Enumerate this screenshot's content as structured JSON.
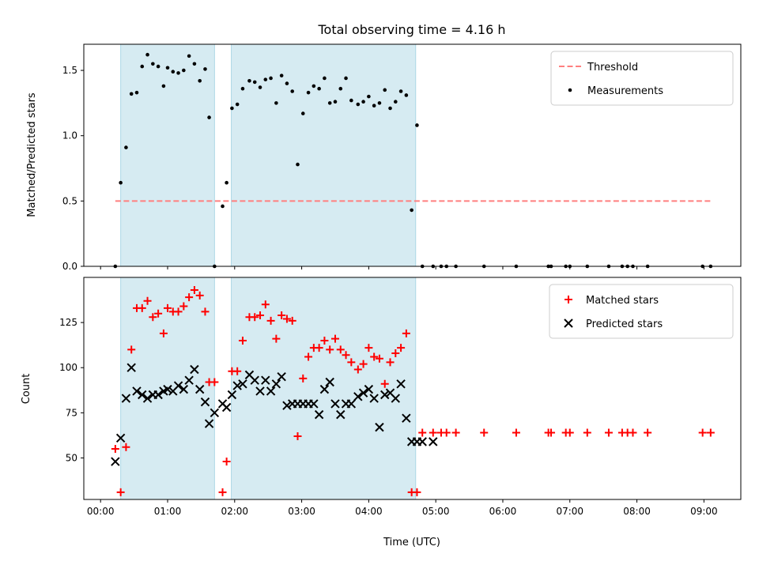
{
  "chart_data": {
    "title": "Total observing time = 4.16 h",
    "xlabel": "Time (UTC)",
    "x_ticks": [
      "00:00",
      "01:00",
      "02:00",
      "03:00",
      "04:00",
      "05:00",
      "06:00",
      "07:00",
      "08:00",
      "09:00"
    ],
    "x_tick_hours": [
      0,
      1,
      2,
      3,
      4,
      5,
      6,
      7,
      8,
      9
    ],
    "xlim_hours": [
      -0.25,
      9.55
    ],
    "observing_windows_hours": [
      [
        0.3,
        1.7
      ],
      [
        1.95,
        4.7
      ]
    ],
    "colors": {
      "window": "#add8e6",
      "threshold": "#ff7f7f",
      "measurements": "#000000",
      "matched": "#ff0000",
      "predicted": "#000000"
    },
    "panels": [
      {
        "type": "scatter",
        "ylabel": "Matched/Predicted stars",
        "ylim": [
          0,
          1.7
        ],
        "y_ticks": [
          0.0,
          0.5,
          1.0,
          1.5
        ],
        "y_tick_labels": [
          "0.0",
          "0.5",
          "1.0",
          "1.5"
        ],
        "legend_position": "top-right",
        "threshold": {
          "name": "Threshold",
          "value": 0.5,
          "x_range_hours": [
            0.22,
            9.1
          ]
        },
        "series": [
          {
            "name": "Measurements",
            "x_hours": [
              0.22,
              0.3,
              0.38,
              0.46,
              0.54,
              0.62,
              0.7,
              0.78,
              0.86,
              0.94,
              1.0,
              1.08,
              1.16,
              1.24,
              1.32,
              1.4,
              1.48,
              1.56,
              1.62,
              1.7,
              1.82,
              1.88,
              1.96,
              2.04,
              2.12,
              2.22,
              2.3,
              2.38,
              2.46,
              2.54,
              2.62,
              2.7,
              2.78,
              2.86,
              2.94,
              3.02,
              3.1,
              3.18,
              3.26,
              3.34,
              3.42,
              3.5,
              3.58,
              3.66,
              3.74,
              3.84,
              3.92,
              4.0,
              4.08,
              4.16,
              4.24,
              4.32,
              4.4,
              4.48,
              4.56,
              4.64,
              4.72,
              4.8,
              4.96,
              5.08,
              5.16,
              5.3,
              5.72,
              6.2,
              6.68,
              6.72,
              6.94,
              7.0,
              7.26,
              7.58,
              7.78,
              7.86,
              7.94,
              8.16,
              8.98,
              9.1
            ],
            "y": [
              0,
              0.64,
              0.91,
              1.32,
              1.33,
              1.53,
              1.62,
              1.55,
              1.53,
              1.38,
              1.52,
              1.49,
              1.48,
              1.5,
              1.61,
              1.55,
              1.42,
              1.51,
              1.14,
              0,
              0.46,
              0.64,
              1.21,
              1.24,
              1.36,
              1.42,
              1.41,
              1.37,
              1.43,
              1.44,
              1.25,
              1.46,
              1.4,
              1.34,
              0.78,
              1.17,
              1.33,
              1.38,
              1.36,
              1.44,
              1.25,
              1.26,
              1.36,
              1.44,
              1.27,
              1.24,
              1.26,
              1.3,
              1.23,
              1.25,
              1.35,
              1.21,
              1.26,
              1.34,
              1.31,
              0.43,
              1.08,
              0,
              0,
              0,
              0,
              0,
              0,
              0,
              0,
              0,
              0,
              0,
              0,
              0,
              0,
              0,
              0,
              0,
              0,
              0
            ]
          }
        ]
      },
      {
        "type": "scatter",
        "ylabel": "Count",
        "ylim": [
          27,
          150
        ],
        "y_ticks": [
          50,
          75,
          100,
          125
        ],
        "y_tick_labels": [
          "50",
          "75",
          "100",
          "125"
        ],
        "legend_position": "top-right",
        "series": [
          {
            "name": "Matched stars",
            "marker": "plus",
            "x_hours": [
              0.22,
              0.3,
              0.38,
              0.46,
              0.54,
              0.62,
              0.7,
              0.78,
              0.86,
              0.94,
              1.0,
              1.08,
              1.16,
              1.24,
              1.32,
              1.4,
              1.48,
              1.56,
              1.62,
              1.7,
              1.82,
              1.88,
              1.96,
              2.04,
              2.12,
              2.22,
              2.3,
              2.38,
              2.46,
              2.54,
              2.62,
              2.7,
              2.78,
              2.86,
              2.94,
              3.02,
              3.1,
              3.18,
              3.26,
              3.34,
              3.42,
              3.5,
              3.58,
              3.66,
              3.74,
              3.84,
              3.92,
              4.0,
              4.08,
              4.16,
              4.24,
              4.32,
              4.4,
              4.48,
              4.56,
              4.64,
              4.72,
              4.8,
              4.96,
              5.08,
              5.16,
              5.3,
              5.72,
              6.2,
              6.68,
              6.72,
              6.94,
              7.0,
              7.26,
              7.58,
              7.78,
              7.86,
              7.94,
              8.16,
              8.98,
              9.1
            ],
            "y": [
              55,
              31,
              56,
              110,
              133,
              133,
              137,
              128,
              130,
              119,
              133,
              131,
              131,
              134,
              139,
              143,
              140,
              131,
              92,
              92,
              31,
              48,
              98,
              98,
              115,
              128,
              128,
              129,
              135,
              126,
              116,
              129,
              127,
              126,
              62,
              94,
              106,
              111,
              111,
              115,
              110,
              116,
              110,
              107,
              103,
              99,
              102,
              111,
              106,
              105,
              91,
              103,
              108,
              111,
              119,
              31,
              31,
              64,
              64,
              64,
              64,
              64,
              64,
              64,
              64,
              64,
              64,
              64,
              64,
              64,
              64,
              64,
              64,
              64,
              64,
              64
            ]
          },
          {
            "name": "Predicted stars",
            "marker": "x",
            "x_hours": [
              0.22,
              0.3,
              0.38,
              0.46,
              0.54,
              0.62,
              0.7,
              0.78,
              0.86,
              0.94,
              1.0,
              1.08,
              1.16,
              1.24,
              1.32,
              1.4,
              1.48,
              1.56,
              1.62,
              1.7,
              1.82,
              1.88,
              1.96,
              2.04,
              2.12,
              2.22,
              2.3,
              2.38,
              2.46,
              2.54,
              2.62,
              2.7,
              2.78,
              2.86,
              2.94,
              3.02,
              3.1,
              3.18,
              3.26,
              3.34,
              3.42,
              3.5,
              3.58,
              3.66,
              3.74,
              3.84,
              3.92,
              4.0,
              4.08,
              4.16,
              4.24,
              4.32,
              4.4,
              4.48,
              4.56,
              4.64,
              4.72,
              4.8,
              4.96
            ],
            "y": [
              48,
              61,
              83,
              100,
              87,
              85,
              83,
              85,
              85,
              87,
              88,
              87,
              90,
              88,
              93,
              99,
              88,
              81,
              69,
              75,
              80,
              78,
              85,
              90,
              91,
              96,
              93,
              87,
              93,
              87,
              91,
              95,
              79,
              80,
              80,
              80,
              80,
              80,
              74,
              88,
              92,
              80,
              74,
              80,
              80,
              84,
              86,
              88,
              83,
              67,
              85,
              86,
              83,
              91,
              72,
              59,
              59,
              59,
              59
            ]
          }
        ]
      }
    ]
  }
}
